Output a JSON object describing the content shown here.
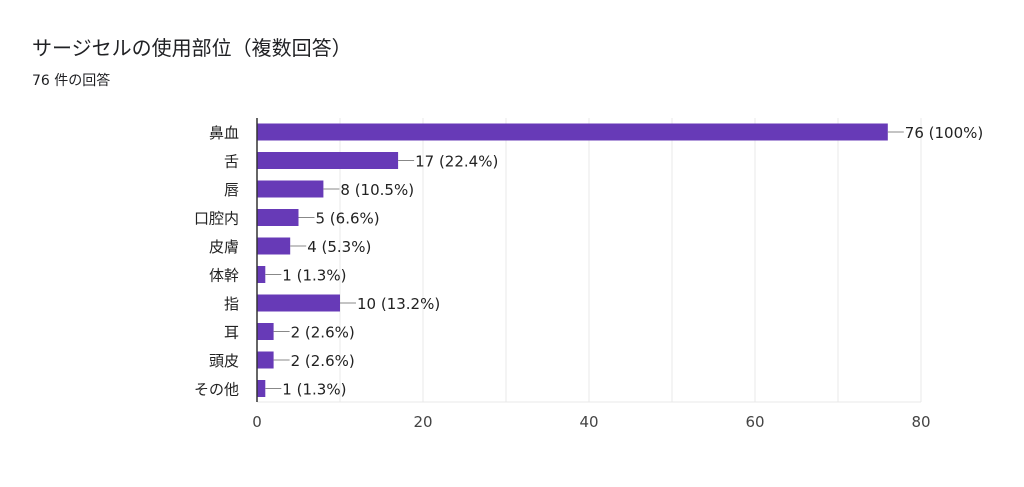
{
  "header": {
    "title": "サージセルの使用部位（複数回答）",
    "subtitle": "76 件の回答"
  },
  "colors": {
    "bar": "#673ab7",
    "grid": "#e8e8e8",
    "axis": "#333333",
    "leader": "#888888"
  },
  "chart_data": {
    "type": "bar",
    "orientation": "horizontal",
    "title": "サージセルの使用部位（複数回答）",
    "subtitle": "76 件の回答",
    "categories": [
      "鼻血",
      "舌",
      "唇",
      "口腔内",
      "皮膚",
      "体幹",
      "指",
      "耳",
      "頭皮",
      "その他"
    ],
    "values": [
      76,
      17,
      8,
      5,
      4,
      1,
      10,
      2,
      2,
      1
    ],
    "data_labels": [
      "76 (100%)",
      "17 (22.4%)",
      "8 (10.5%)",
      "5 (6.6%)",
      "4 (5.3%)",
      "1 (1.3%)",
      "10 (13.2%)",
      "2 (2.6%)",
      "2 (2.6%)",
      "1 (1.3%)"
    ],
    "xlim": [
      0,
      80
    ],
    "xticks": [
      0,
      20,
      40,
      60,
      80
    ],
    "grid": true,
    "legend": "none"
  }
}
